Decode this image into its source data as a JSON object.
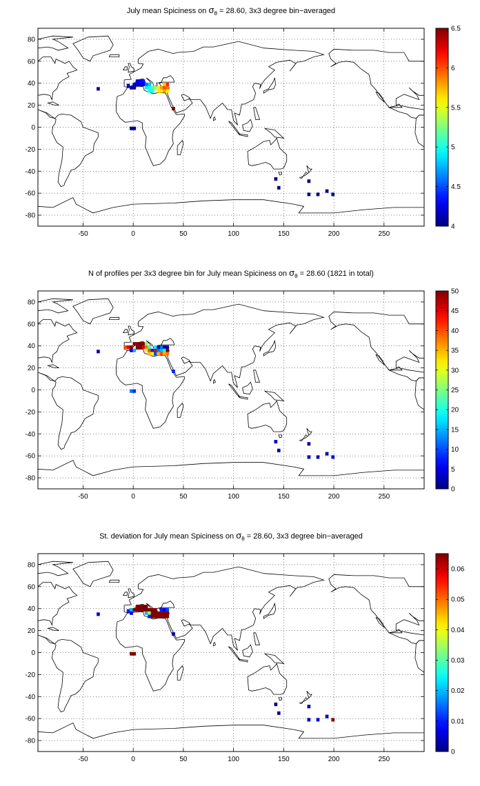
{
  "figure": {
    "background": "#ffffff",
    "land_outline_color": "#000000"
  },
  "chart_data": [
    {
      "type": "heatmap",
      "title_parts": [
        "July mean Spiciness on ",
        "σ",
        "θ",
        " = 28.60, 3x3 degree bin−averaged"
      ],
      "xticks": [
        -50,
        0,
        50,
        100,
        150,
        200,
        250
      ],
      "yticks": [
        -80,
        -60,
        -40,
        -20,
        0,
        20,
        40,
        60,
        80
      ],
      "xlim": [
        -95,
        290
      ],
      "ylim": [
        -90,
        90
      ],
      "grid": true,
      "colormap": "jet",
      "clim": [
        4,
        6.5
      ],
      "colorbar_ticks": [
        4,
        4.5,
        5,
        5.5,
        6,
        6.5
      ],
      "colorbar_labels": [
        "4",
        "4.5",
        "5",
        "5.5",
        "6",
        "6.5"
      ],
      "bins": [
        {
          "x": -35,
          "y": 35,
          "v": 4.05
        },
        {
          "x": -5,
          "y": 38,
          "v": 4.2
        },
        {
          "x": -2,
          "y": 36,
          "v": 4.05
        },
        {
          "x": 1,
          "y": 36,
          "v": 4.05
        },
        {
          "x": 1,
          "y": 39,
          "v": 4.2
        },
        {
          "x": 4,
          "y": 39,
          "v": 4.2
        },
        {
          "x": 4,
          "y": 42,
          "v": 4.25
        },
        {
          "x": 7,
          "y": 42,
          "v": 4.3
        },
        {
          "x": 7,
          "y": 39,
          "v": 4.25
        },
        {
          "x": 10,
          "y": 42,
          "v": 4.35
        },
        {
          "x": 10,
          "y": 39,
          "v": 4.3
        },
        {
          "x": 13,
          "y": 39,
          "v": 4.6
        },
        {
          "x": 13,
          "y": 36,
          "v": 4.9
        },
        {
          "x": 16,
          "y": 39,
          "v": 4.8
        },
        {
          "x": 16,
          "y": 36,
          "v": 4.95
        },
        {
          "x": 16,
          "y": 33,
          "v": 5.0
        },
        {
          "x": 19,
          "y": 33,
          "v": 5.0
        },
        {
          "x": 19,
          "y": 36,
          "v": 5.1
        },
        {
          "x": 22,
          "y": 36,
          "v": 5.3
        },
        {
          "x": 25,
          "y": 36,
          "v": 5.6
        },
        {
          "x": 25,
          "y": 33,
          "v": 5.6
        },
        {
          "x": 28,
          "y": 33,
          "v": 5.6
        },
        {
          "x": 28,
          "y": 36,
          "v": 5.8
        },
        {
          "x": 31,
          "y": 36,
          "v": 6.0
        },
        {
          "x": 31,
          "y": 33,
          "v": 5.8
        },
        {
          "x": 34,
          "y": 33,
          "v": 5.6
        },
        {
          "x": 34,
          "y": 36,
          "v": 5.9
        },
        {
          "x": 34,
          "y": 39,
          "v": 6.1
        },
        {
          "x": 31,
          "y": 39,
          "v": 5.7
        },
        {
          "x": 40,
          "y": 17,
          "v": 6.5
        },
        {
          "x": -2,
          "y": -1,
          "v": 4.05
        },
        {
          "x": 1,
          "y": -1,
          "v": 4.05
        },
        {
          "x": 142,
          "y": -47,
          "v": 4.0
        },
        {
          "x": 145,
          "y": -55,
          "v": 4.0
        },
        {
          "x": 175,
          "y": -49,
          "v": 4.0
        },
        {
          "x": 175,
          "y": -61,
          "v": 4.0
        },
        {
          "x": 184,
          "y": -61,
          "v": 4.0
        },
        {
          "x": 193,
          "y": -58,
          "v": 4.0
        },
        {
          "x": 199,
          "y": -61,
          "v": 4.0
        }
      ]
    },
    {
      "type": "heatmap",
      "title_parts": [
        "N of profiles per 3x3 degree bin for July mean Spiciness on ",
        "σ",
        "θ",
        " = 28.60 (1821 in total)"
      ],
      "xticks": [
        -50,
        0,
        50,
        100,
        150,
        200,
        250
      ],
      "yticks": [
        -80,
        -60,
        -40,
        -20,
        0,
        20,
        40,
        60,
        80
      ],
      "xlim": [
        -95,
        290
      ],
      "ylim": [
        -90,
        90
      ],
      "grid": true,
      "colormap": "jet",
      "clim": [
        0,
        50
      ],
      "colorbar_ticks": [
        0,
        5,
        10,
        15,
        20,
        25,
        30,
        35,
        40,
        45,
        50
      ],
      "colorbar_labels": [
        "0",
        "5",
        "10",
        "15",
        "20",
        "25",
        "30",
        "35",
        "40",
        "45",
        "50"
      ],
      "bins": [
        {
          "x": -35,
          "y": 35,
          "v": 3
        },
        {
          "x": -8,
          "y": 39,
          "v": 40
        },
        {
          "x": -5,
          "y": 39,
          "v": 45
        },
        {
          "x": -2,
          "y": 39,
          "v": 50
        },
        {
          "x": -2,
          "y": 36,
          "v": 5
        },
        {
          "x": 1,
          "y": 36,
          "v": 15
        },
        {
          "x": 1,
          "y": 42,
          "v": 50
        },
        {
          "x": 4,
          "y": 42,
          "v": 50
        },
        {
          "x": 4,
          "y": 39,
          "v": 50
        },
        {
          "x": 7,
          "y": 42,
          "v": 50
        },
        {
          "x": 7,
          "y": 39,
          "v": 50
        },
        {
          "x": 10,
          "y": 42,
          "v": 50
        },
        {
          "x": 10,
          "y": 39,
          "v": 45
        },
        {
          "x": 13,
          "y": 42,
          "v": 25
        },
        {
          "x": 13,
          "y": 39,
          "v": 38
        },
        {
          "x": 13,
          "y": 36,
          "v": 30
        },
        {
          "x": 16,
          "y": 39,
          "v": 22
        },
        {
          "x": 16,
          "y": 36,
          "v": 40
        },
        {
          "x": 16,
          "y": 33,
          "v": 35
        },
        {
          "x": 19,
          "y": 36,
          "v": 8
        },
        {
          "x": 19,
          "y": 33,
          "v": 30
        },
        {
          "x": 22,
          "y": 36,
          "v": 45
        },
        {
          "x": 22,
          "y": 33,
          "v": 10
        },
        {
          "x": 22,
          "y": 39,
          "v": 18
        },
        {
          "x": 25,
          "y": 39,
          "v": 2
        },
        {
          "x": 25,
          "y": 36,
          "v": 12
        },
        {
          "x": 25,
          "y": 33,
          "v": 35
        },
        {
          "x": 28,
          "y": 36,
          "v": 15
        },
        {
          "x": 28,
          "y": 33,
          "v": 40
        },
        {
          "x": 28,
          "y": 39,
          "v": 12
        },
        {
          "x": 31,
          "y": 39,
          "v": 2
        },
        {
          "x": 31,
          "y": 36,
          "v": 20
        },
        {
          "x": 31,
          "y": 33,
          "v": 35
        },
        {
          "x": 34,
          "y": 39,
          "v": 4
        },
        {
          "x": 34,
          "y": 36,
          "v": 50
        },
        {
          "x": 34,
          "y": 33,
          "v": 38
        },
        {
          "x": 40,
          "y": 17,
          "v": 8
        },
        {
          "x": -2,
          "y": -1,
          "v": 12
        },
        {
          "x": 1,
          "y": -1,
          "v": 8
        },
        {
          "x": 142,
          "y": -47,
          "v": 4
        },
        {
          "x": 145,
          "y": -55,
          "v": 3
        },
        {
          "x": 175,
          "y": -49,
          "v": 2
        },
        {
          "x": 175,
          "y": -61,
          "v": 3
        },
        {
          "x": 184,
          "y": -61,
          "v": 3
        },
        {
          "x": 193,
          "y": -58,
          "v": 2
        },
        {
          "x": 199,
          "y": -61,
          "v": 4
        }
      ]
    },
    {
      "type": "heatmap",
      "title_parts": [
        "St. deviation for July mean Spiciness on ",
        "σ",
        "θ",
        " = 28.60, 3x3 degree bin−averaged"
      ],
      "xticks": [
        -50,
        0,
        50,
        100,
        150,
        200,
        250
      ],
      "yticks": [
        -80,
        -60,
        -40,
        -20,
        0,
        20,
        40,
        60,
        80
      ],
      "xlim": [
        -95,
        290
      ],
      "ylim": [
        -90,
        90
      ],
      "grid": true,
      "colormap": "jet",
      "clim": [
        0,
        0.065
      ],
      "colorbar_ticks": [
        0,
        0.01,
        0.02,
        0.03,
        0.04,
        0.05,
        0.06
      ],
      "colorbar_labels": [
        "0",
        "0.01",
        "0.02",
        "0.03",
        "0.04",
        "0.05",
        "0.06"
      ],
      "bins": [
        {
          "x": -35,
          "y": 35,
          "v": 0.004
        },
        {
          "x": -5,
          "y": 38,
          "v": 0.01
        },
        {
          "x": -2,
          "y": 36,
          "v": 0.006
        },
        {
          "x": -2,
          "y": 39,
          "v": 0.02
        },
        {
          "x": 1,
          "y": 39,
          "v": 0.065
        },
        {
          "x": 4,
          "y": 39,
          "v": 0.065
        },
        {
          "x": 4,
          "y": 42,
          "v": 0.065
        },
        {
          "x": 7,
          "y": 39,
          "v": 0.065
        },
        {
          "x": 7,
          "y": 42,
          "v": 0.065
        },
        {
          "x": 10,
          "y": 39,
          "v": 0.065
        },
        {
          "x": 10,
          "y": 42,
          "v": 0.065
        },
        {
          "x": 13,
          "y": 39,
          "v": 0.065
        },
        {
          "x": 13,
          "y": 42,
          "v": 0.065
        },
        {
          "x": 13,
          "y": 36,
          "v": 0.02
        },
        {
          "x": 16,
          "y": 39,
          "v": 0.065
        },
        {
          "x": 16,
          "y": 36,
          "v": 0.035
        },
        {
          "x": 16,
          "y": 33,
          "v": 0.01
        },
        {
          "x": 19,
          "y": 39,
          "v": 0.065
        },
        {
          "x": 19,
          "y": 36,
          "v": 0.065
        },
        {
          "x": 19,
          "y": 33,
          "v": 0.065
        },
        {
          "x": 22,
          "y": 39,
          "v": 0.065
        },
        {
          "x": 22,
          "y": 36,
          "v": 0.065
        },
        {
          "x": 22,
          "y": 33,
          "v": 0.065
        },
        {
          "x": 25,
          "y": 36,
          "v": 0.065
        },
        {
          "x": 25,
          "y": 33,
          "v": 0.065
        },
        {
          "x": 28,
          "y": 36,
          "v": 0.065
        },
        {
          "x": 28,
          "y": 33,
          "v": 0.065
        },
        {
          "x": 31,
          "y": 36,
          "v": 0.065
        },
        {
          "x": 31,
          "y": 33,
          "v": 0.065
        },
        {
          "x": 34,
          "y": 36,
          "v": 0.065
        },
        {
          "x": 34,
          "y": 33,
          "v": 0.065
        },
        {
          "x": 28,
          "y": 39,
          "v": 0.01
        },
        {
          "x": 31,
          "y": 39,
          "v": 0.008
        },
        {
          "x": 34,
          "y": 39,
          "v": 0.012
        },
        {
          "x": 40,
          "y": 17,
          "v": 0.003
        },
        {
          "x": -2,
          "y": -1,
          "v": 0.065
        },
        {
          "x": 1,
          "y": -1,
          "v": 0.065
        },
        {
          "x": 142,
          "y": -47,
          "v": 0.002
        },
        {
          "x": 145,
          "y": -55,
          "v": 0.002
        },
        {
          "x": 175,
          "y": -49,
          "v": 0.002
        },
        {
          "x": 175,
          "y": -61,
          "v": 0.004
        },
        {
          "x": 184,
          "y": -61,
          "v": 0.006
        },
        {
          "x": 193,
          "y": -58,
          "v": 0.003
        },
        {
          "x": 199,
          "y": -61,
          "v": 0.065
        }
      ]
    }
  ]
}
